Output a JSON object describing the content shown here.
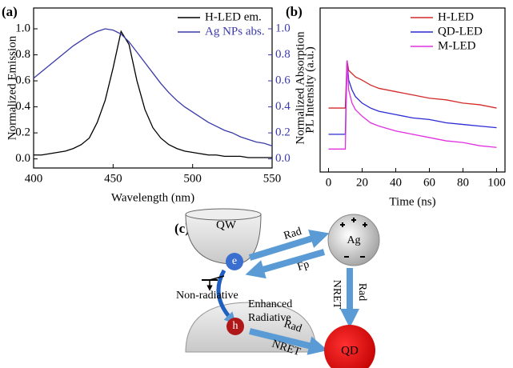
{
  "chart_data": [
    {
      "type": "line",
      "label": "(a)",
      "xlabel": "Wavelength (nm)",
      "ylabel": "Normalized Emission",
      "y2label": "Normalized Absorption",
      "x": [
        400,
        405,
        410,
        415,
        420,
        425,
        430,
        435,
        440,
        445,
        450,
        455,
        460,
        465,
        470,
        475,
        480,
        485,
        490,
        495,
        500,
        505,
        510,
        515,
        520,
        525,
        530,
        535,
        540,
        545,
        550
      ],
      "series": [
        {
          "name": "H-LED em.",
          "color": "#000000",
          "values": [
            0.03,
            0.03,
            0.04,
            0.05,
            0.06,
            0.08,
            0.11,
            0.16,
            0.28,
            0.45,
            0.7,
            0.98,
            0.88,
            0.6,
            0.38,
            0.24,
            0.16,
            0.11,
            0.08,
            0.06,
            0.05,
            0.04,
            0.03,
            0.03,
            0.02,
            0.02,
            0.02,
            0.01,
            0.01,
            0.01,
            0.01
          ]
        },
        {
          "name": "Ag NPs abs.",
          "color": "#3a3aa8",
          "axis": "y2",
          "values": [
            0.62,
            0.67,
            0.72,
            0.77,
            0.82,
            0.87,
            0.91,
            0.95,
            0.98,
            1.0,
            0.99,
            0.96,
            0.9,
            0.82,
            0.74,
            0.66,
            0.58,
            0.51,
            0.45,
            0.4,
            0.36,
            0.32,
            0.28,
            0.25,
            0.22,
            0.2,
            0.17,
            0.15,
            0.13,
            0.12,
            0.1
          ]
        }
      ],
      "xlim": [
        400,
        550
      ],
      "xticks": [
        400,
        450,
        500,
        550
      ],
      "ylim": [
        -0.07,
        1.16
      ],
      "yticks": [
        {
          "value": 0,
          "label": "0.0"
        },
        {
          "value": 0.2,
          "label": "0.2"
        },
        {
          "value": 0.4,
          "label": "0.4"
        },
        {
          "value": 0.6,
          "label": "0.6"
        },
        {
          "value": 0.8,
          "label": "0.8"
        },
        {
          "value": 1,
          "label": "1.0"
        }
      ],
      "y2lim": [
        -0.07,
        1.16
      ],
      "y2ticks": [
        {
          "value": 0,
          "label": "0.0"
        },
        {
          "value": 0.2,
          "label": "0.2"
        },
        {
          "value": 0.4,
          "label": "0.4"
        },
        {
          "value": 0.6,
          "label": "0.6"
        },
        {
          "value": 0.8,
          "label": "0.8"
        },
        {
          "value": 1,
          "label": "1.0"
        }
      ],
      "y2color": "#3a3aa8",
      "legend": "upper right"
    },
    {
      "type": "line",
      "label": "(b)",
      "xlabel": "Time (ns)",
      "ylabel": "PL Intensity (a.u.)",
      "x": [
        0,
        2,
        4,
        6,
        8,
        10,
        11,
        12,
        14,
        16,
        20,
        25,
        30,
        40,
        50,
        60,
        70,
        80,
        90,
        100
      ],
      "series": [
        {
          "name": "H-LED",
          "color": "#d42a2a",
          "values": [
            0.39,
            0.39,
            0.39,
            0.39,
            0.39,
            0.39,
            0.68,
            0.62,
            0.6,
            0.58,
            0.56,
            0.53,
            0.51,
            0.49,
            0.47,
            0.45,
            0.44,
            0.42,
            0.41,
            0.39
          ]
        },
        {
          "name": "QD-LED",
          "color": "#2a2ad4",
          "values": [
            0.23,
            0.23,
            0.23,
            0.23,
            0.23,
            0.23,
            0.68,
            0.56,
            0.5,
            0.46,
            0.42,
            0.39,
            0.37,
            0.35,
            0.33,
            0.32,
            0.3,
            0.29,
            0.28,
            0.27
          ]
        },
        {
          "name": "M-LED",
          "color": "#e030e0",
          "values": [
            0.14,
            0.14,
            0.14,
            0.14,
            0.14,
            0.14,
            0.68,
            0.5,
            0.42,
            0.38,
            0.34,
            0.3,
            0.28,
            0.25,
            0.23,
            0.21,
            0.19,
            0.18,
            0.16,
            0.15
          ]
        }
      ],
      "xlim": [
        -5,
        105
      ],
      "xticks": [
        0,
        20,
        40,
        60,
        80,
        100
      ],
      "ylim": [
        0,
        1
      ],
      "legend": "upper right"
    }
  ],
  "diagram": {
    "label": "(c)",
    "qw": "QW",
    "ag": "Ag",
    "electron": "e",
    "hole": "h",
    "qd": "QD",
    "rad_to_ag": "Rad",
    "fp": "Fp",
    "non_radiative": "Non-radiative",
    "enhanced": "Enhanced",
    "radiative": "Radiative",
    "rad_to_qd": "Rad",
    "nret_to_qd": "NRET",
    "ag_rad": "Rad",
    "ag_nret": "NRET"
  }
}
